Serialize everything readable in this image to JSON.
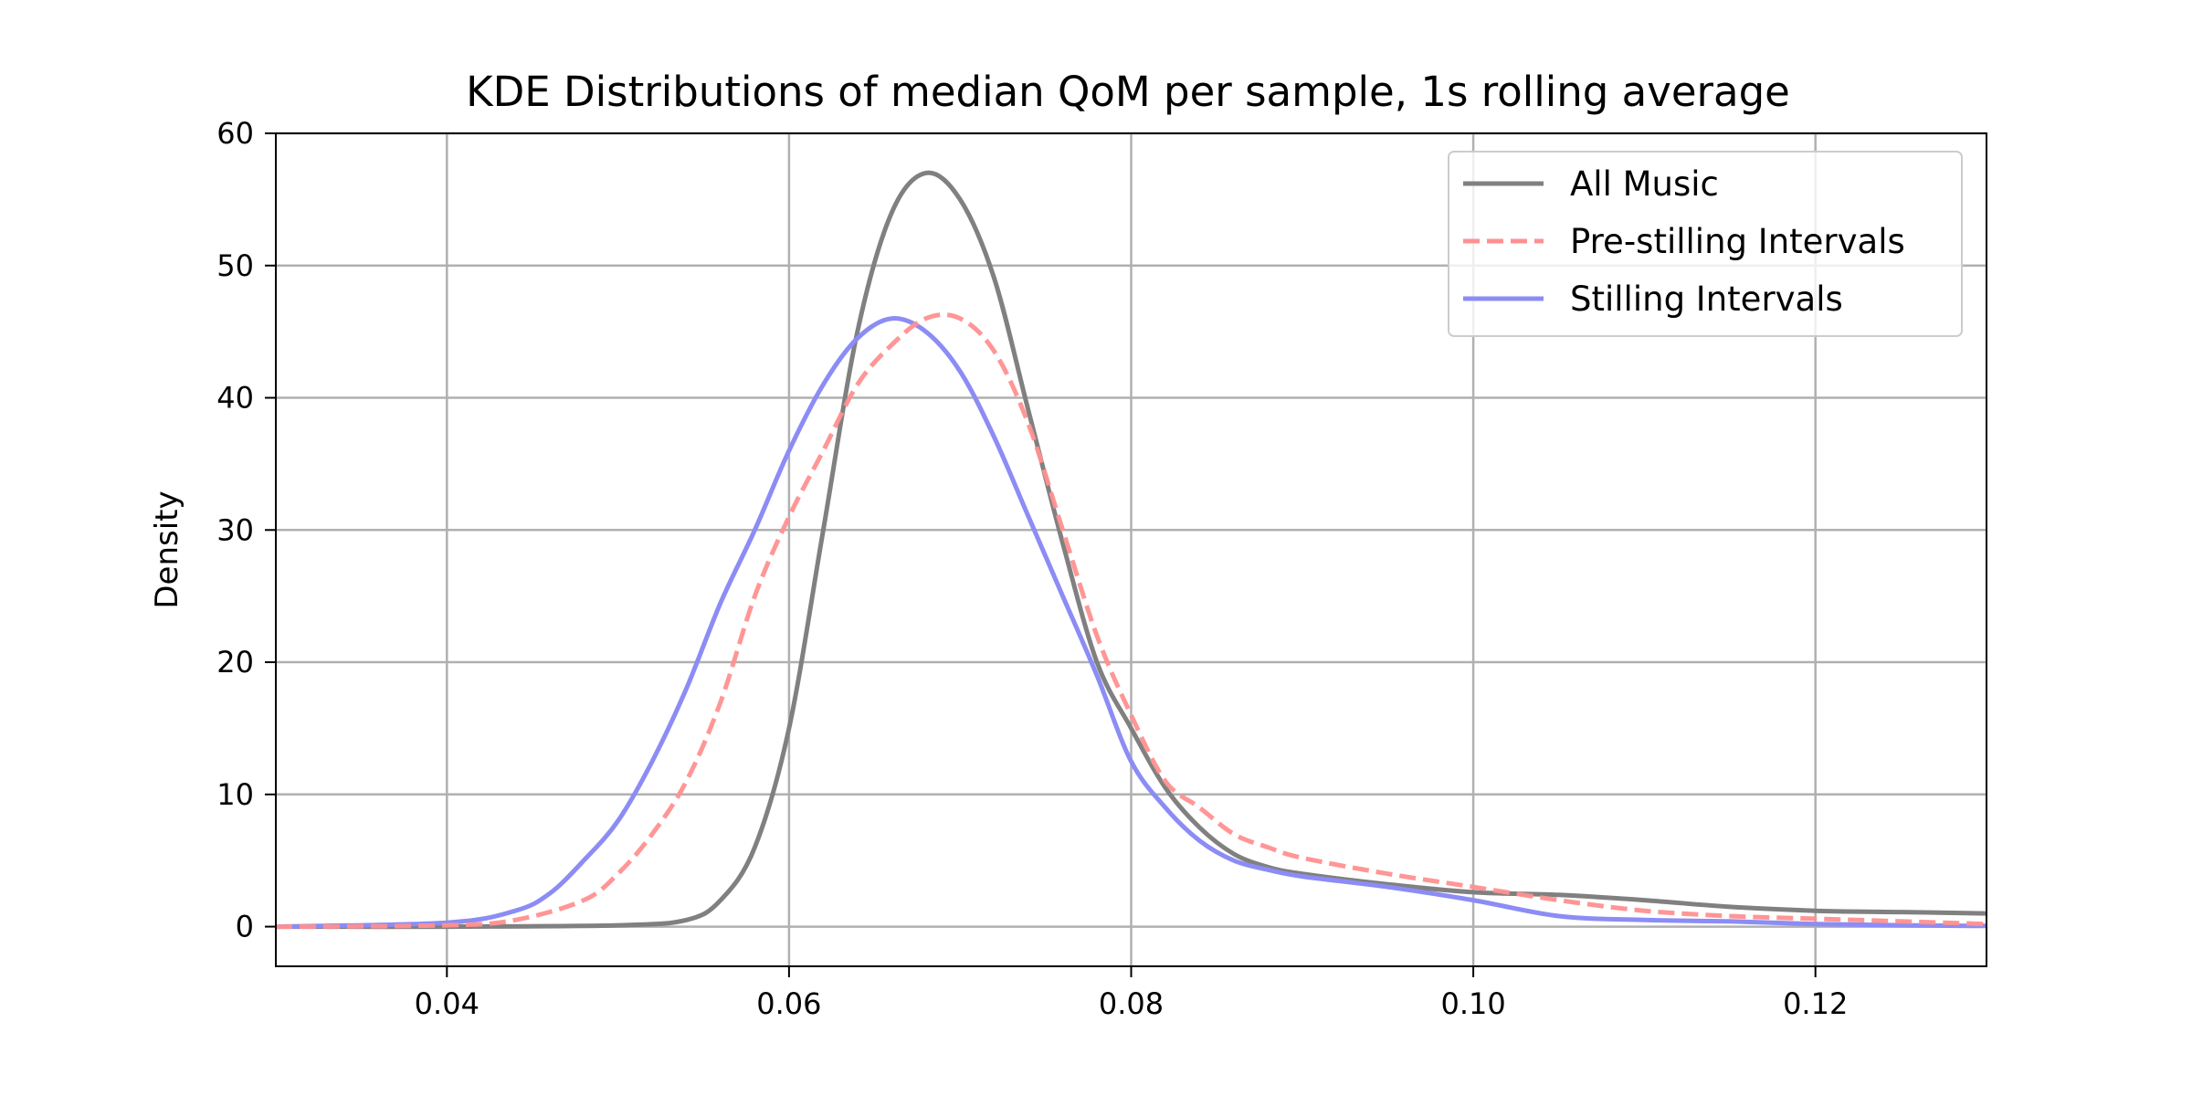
{
  "chart_data": {
    "type": "line",
    "title": "KDE Distributions of median QoM per sample, 1s rolling average",
    "xlabel": "",
    "ylabel": "Density",
    "xlim": [
      0.03,
      0.13
    ],
    "ylim": [
      -3,
      60
    ],
    "xticks": [
      0.04,
      0.06,
      0.08,
      0.1,
      0.12
    ],
    "xtick_labels": [
      "0.04",
      "0.06",
      "0.08",
      "0.10",
      "0.12"
    ],
    "yticks": [
      0,
      10,
      20,
      30,
      40,
      50,
      60
    ],
    "ytick_labels": [
      "0",
      "10",
      "20",
      "30",
      "40",
      "50",
      "60"
    ],
    "grid": true,
    "legend_position": "top-right",
    "series": [
      {
        "name": "All Music",
        "color": "#808080",
        "style": "solid",
        "x": [
          0.03,
          0.04,
          0.05,
          0.054,
          0.056,
          0.058,
          0.06,
          0.062,
          0.064,
          0.066,
          0.068,
          0.07,
          0.072,
          0.074,
          0.076,
          0.078,
          0.08,
          0.082,
          0.084,
          0.086,
          0.088,
          0.09,
          0.095,
          0.1,
          0.105,
          0.11,
          0.115,
          0.12,
          0.125,
          0.13
        ],
        "y": [
          0,
          0,
          0.1,
          0.5,
          2,
          6,
          15,
          30,
          45,
          54,
          57,
          55,
          49,
          39,
          29,
          20,
          15,
          10.5,
          7.5,
          5.5,
          4.5,
          4,
          3.2,
          2.6,
          2.4,
          2.0,
          1.5,
          1.2,
          1.1,
          1.0
        ]
      },
      {
        "name": "Pre-stilling Intervals",
        "color": "#ff9090",
        "style": "dashed",
        "x": [
          0.03,
          0.04,
          0.044,
          0.048,
          0.05,
          0.052,
          0.054,
          0.056,
          0.058,
          0.06,
          0.062,
          0.064,
          0.066,
          0.068,
          0.07,
          0.072,
          0.074,
          0.076,
          0.078,
          0.08,
          0.082,
          0.084,
          0.086,
          0.088,
          0.09,
          0.095,
          0.1,
          0.105,
          0.11,
          0.115,
          0.12,
          0.125,
          0.13
        ],
        "y": [
          0,
          0.1,
          0.5,
          2,
          4,
          7,
          11,
          17,
          25,
          31,
          36,
          41,
          44,
          46,
          46,
          43.5,
          38,
          30,
          22,
          16,
          11,
          9,
          7,
          6,
          5.2,
          4,
          3,
          2,
          1.2,
          0.8,
          0.6,
          0.4,
          0.2
        ]
      },
      {
        "name": "Stilling Intervals",
        "color": "#8c8cf5",
        "style": "solid",
        "x": [
          0.03,
          0.04,
          0.044,
          0.046,
          0.048,
          0.05,
          0.052,
          0.054,
          0.056,
          0.058,
          0.06,
          0.062,
          0.064,
          0.066,
          0.068,
          0.07,
          0.072,
          0.074,
          0.076,
          0.078,
          0.08,
          0.082,
          0.084,
          0.086,
          0.088,
          0.09,
          0.095,
          0.1,
          0.105,
          0.11,
          0.115,
          0.12,
          0.125,
          0.13
        ],
        "y": [
          0,
          0.3,
          1.2,
          2.5,
          5,
          8,
          12.5,
          18,
          24.5,
          30,
          36,
          41,
          44.5,
          46,
          45,
          42,
          37,
          31,
          25,
          19,
          12.5,
          9,
          6.5,
          5,
          4.3,
          3.8,
          3,
          2,
          0.8,
          0.5,
          0.4,
          0.2,
          0.1,
          0.05
        ]
      }
    ]
  }
}
